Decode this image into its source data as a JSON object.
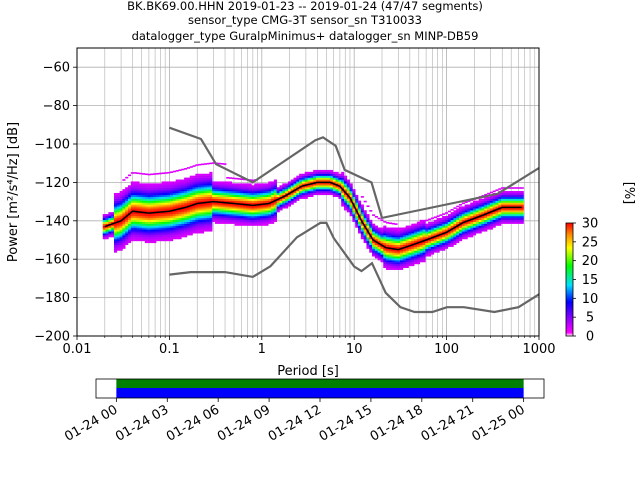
{
  "title_lines": [
    "BK.BK69.00.HHN   2019-01-23 -- 2019-01-24  (47/47 segments)",
    "sensor_type CMG-3T sensor_sn T310033",
    "datalogger_type GuralpMinimus+ datalogger_sn MINP-DB59"
  ],
  "chart_data": {
    "type": "heatmap",
    "title": "BK.BK69.00.HHN   2019-01-23 -- 2019-01-24  (47/47 segments)",
    "xlabel": "Period [s]",
    "ylabel": "Power [m²/s⁴/Hz] [dB]",
    "xscale": "log",
    "xlim": [
      0.01,
      1000
    ],
    "ylim": [
      -200,
      -50
    ],
    "x_ticks": [
      {
        "value": 0.01,
        "label": "0.01"
      },
      {
        "value": 0.1,
        "label": "0.1"
      },
      {
        "value": 1,
        "label": "1"
      },
      {
        "value": 10,
        "label": "10"
      },
      {
        "value": 100,
        "label": "100"
      },
      {
        "value": 1000,
        "label": "1000"
      }
    ],
    "y_ticks": [
      {
        "value": -60,
        "label": "−60"
      },
      {
        "value": -80,
        "label": "−80"
      },
      {
        "value": -100,
        "label": "−100"
      },
      {
        "value": -120,
        "label": "−120"
      },
      {
        "value": -140,
        "label": "−140"
      },
      {
        "value": -160,
        "label": "−160"
      },
      {
        "value": -180,
        "label": "−180"
      },
      {
        "value": -200,
        "label": "−200"
      }
    ],
    "grid": true,
    "noise_models": {
      "high": {
        "x": [
          0.1,
          0.22,
          0.32,
          0.8,
          3.8,
          4.6,
          6.3,
          7.9,
          15.4,
          20,
          354.8,
          1000
        ],
        "y": [
          -91.5,
          -97.4,
          -110.5,
          -120,
          -98,
          -96.5,
          -101,
          -113.5,
          -120,
          -138.5,
          -126,
          -112.5
        ]
      },
      "low": {
        "x": [
          0.1,
          0.17,
          0.4,
          0.8,
          1.24,
          2.4,
          4.3,
          5,
          6,
          10,
          12,
          15.6,
          21.9,
          31.6,
          45,
          70,
          101,
          154,
          328,
          600,
          1000
        ],
        "y": [
          -168,
          -166.7,
          -166.7,
          -169.2,
          -163.7,
          -148.6,
          -141.1,
          -141.1,
          -149,
          -163.8,
          -166.2,
          -162.1,
          -177.5,
          -185,
          -187.5,
          -187.5,
          -185,
          -185,
          -187.5,
          -185,
          -178.3
        ]
      }
    },
    "mode_curve": {
      "x": [
        0.02,
        0.03,
        0.04,
        0.06,
        0.1,
        0.15,
        0.2,
        0.3,
        0.5,
        0.8,
        1.2,
        1.8,
        2.7,
        4,
        5.5,
        7,
        9,
        12,
        16,
        22,
        30,
        40,
        60,
        100,
        150,
        250,
        400,
        650
      ],
      "y": [
        -143,
        -140,
        -135,
        -136,
        -135,
        -133,
        -131,
        -130,
        -131,
        -132,
        -131,
        -127,
        -122,
        -120,
        -120,
        -122,
        -128,
        -140,
        -150,
        -154,
        -155,
        -153,
        -150,
        -146,
        -141,
        -137,
        -133,
        -133
      ]
    },
    "colorbar": {
      "label": "[%]",
      "min": 0,
      "max": 30,
      "ticks": [
        {
          "value": 0,
          "label": "0"
        },
        {
          "value": 5,
          "label": "5"
        },
        {
          "value": 10,
          "label": "10"
        },
        {
          "value": 15,
          "label": "15"
        },
        {
          "value": 20,
          "label": "20"
        },
        {
          "value": 25,
          "label": "25"
        },
        {
          "value": 30,
          "label": "30"
        }
      ]
    },
    "coverage": {
      "ticks": [
        {
          "value": 0,
          "label": "01-24 00"
        },
        {
          "value": 3,
          "label": "01-24 03"
        },
        {
          "value": 6,
          "label": "01-24 06"
        },
        {
          "value": 9,
          "label": "01-24 09"
        },
        {
          "value": 12,
          "label": "01-24 12"
        },
        {
          "value": 15,
          "label": "01-24 15"
        },
        {
          "value": 18,
          "label": "01-24 18"
        },
        {
          "value": 21,
          "label": "01-24 21"
        },
        {
          "value": 24,
          "label": "01-25 00"
        }
      ],
      "range": [
        -1.2,
        25.2
      ],
      "data_span": [
        0,
        24
      ],
      "colors": {
        "top": "#008000",
        "bottom": "#0000ff"
      }
    }
  }
}
